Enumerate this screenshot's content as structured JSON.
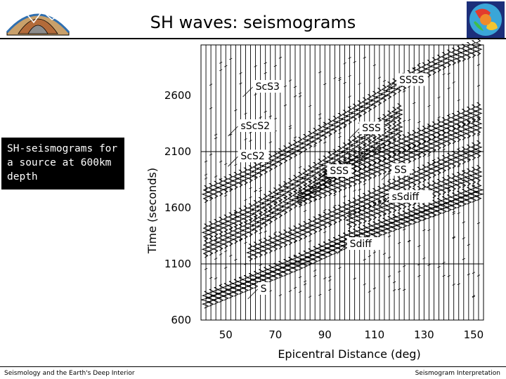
{
  "slide": {
    "title": "SH waves: seismograms",
    "caption": "SH-seismograms for a source at 600km depth",
    "footer_left": "Seismology and the Earth's Deep Interior",
    "footer_right": "Seismogram Interpretation"
  },
  "colors": {
    "caption_bg": "#000000",
    "caption_text": "#ffffff",
    "traces": "#000000"
  },
  "icons": {
    "left_logo": "earth-cross-section-icon",
    "right_logo": "mantle-tomography-globe-icon"
  },
  "chart_data": {
    "type": "line",
    "title": "",
    "xlabel": "Epicentral Distance (deg)",
    "ylabel": "Time (seconds)",
    "xlim": [
      40,
      154
    ],
    "ylim": [
      600,
      3050
    ],
    "xticks": [
      50,
      70,
      90,
      110,
      130,
      150
    ],
    "yticks": [
      600,
      1100,
      1600,
      2100,
      2600
    ],
    "grid": "traces plus horizontal lines at 1100 and 2100 s",
    "trace_distances": [
      42,
      44,
      46,
      48,
      50,
      52,
      54,
      56,
      58,
      60,
      62,
      64,
      66,
      68,
      70,
      72,
      74,
      76,
      78,
      80,
      82,
      84,
      86,
      88,
      90,
      92,
      94,
      96,
      98,
      100,
      102,
      104,
      106,
      108,
      110,
      112,
      114,
      116,
      118,
      120,
      122,
      124,
      126,
      128,
      130,
      132,
      134,
      136,
      138,
      140,
      142,
      144,
      146,
      148,
      150,
      152
    ],
    "phases": [
      {
        "name": "S",
        "x": [
          42,
          60,
          80,
          100
        ],
        "y": [
          780,
          940,
          1120,
          1320
        ]
      },
      {
        "name": "Sdiff",
        "x": [
          100,
          120,
          140,
          152
        ],
        "y": [
          1320,
          1480,
          1640,
          1740
        ]
      },
      {
        "name": "ScS2",
        "x": [
          42,
          60,
          80,
          100,
          120
        ],
        "y": [
          1230,
          1420,
          1700,
          2000,
          2300
        ]
      },
      {
        "name": "sScS2",
        "x": [
          42,
          60,
          80,
          100,
          120
        ],
        "y": [
          1380,
          1560,
          1840,
          2130,
          2450
        ]
      },
      {
        "name": "SS",
        "x": [
          60,
          80,
          100,
          120,
          140,
          152
        ],
        "y": [
          1200,
          1380,
          1590,
          1800,
          2010,
          2120
        ]
      },
      {
        "name": "sSdiff",
        "x": [
          100,
          120,
          140,
          152
        ],
        "y": [
          1490,
          1650,
          1810,
          1900
        ]
      },
      {
        "name": "ScS3",
        "x": [
          42,
          60,
          80,
          100,
          120,
          140,
          152
        ],
        "y": [
          1720,
          1900,
          2150,
          2420,
          2700,
          2930,
          3030
        ]
      },
      {
        "name": "SSS",
        "x": [
          80,
          100,
          120,
          140,
          152
        ],
        "y": [
          1680,
          1850,
          2030,
          2230,
          2330
        ]
      },
      {
        "name": "sSSS",
        "x": [
          90,
          110,
          130,
          152
        ],
        "y": [
          1880,
          2060,
          2250,
          2460
        ]
      }
    ],
    "phase_labels": [
      {
        "text": "ScS3",
        "x": 62,
        "y": 2650
      },
      {
        "text": "sScS2",
        "x": 56,
        "y": 2300
      },
      {
        "text": "ScS2",
        "x": 56,
        "y": 2030
      },
      {
        "text": "SSSS",
        "x": 120,
        "y": 2710
      },
      {
        "text": "SSS",
        "x": 105,
        "y": 2280
      },
      {
        "text": "SSS",
        "x": 92,
        "y": 1900
      },
      {
        "text": "SS",
        "x": 118,
        "y": 1910
      },
      {
        "text": "sSdiff",
        "x": 117,
        "y": 1670
      },
      {
        "text": "Sdiff",
        "x": 100,
        "y": 1250
      },
      {
        "text": "S",
        "x": 64,
        "y": 850
      }
    ]
  }
}
